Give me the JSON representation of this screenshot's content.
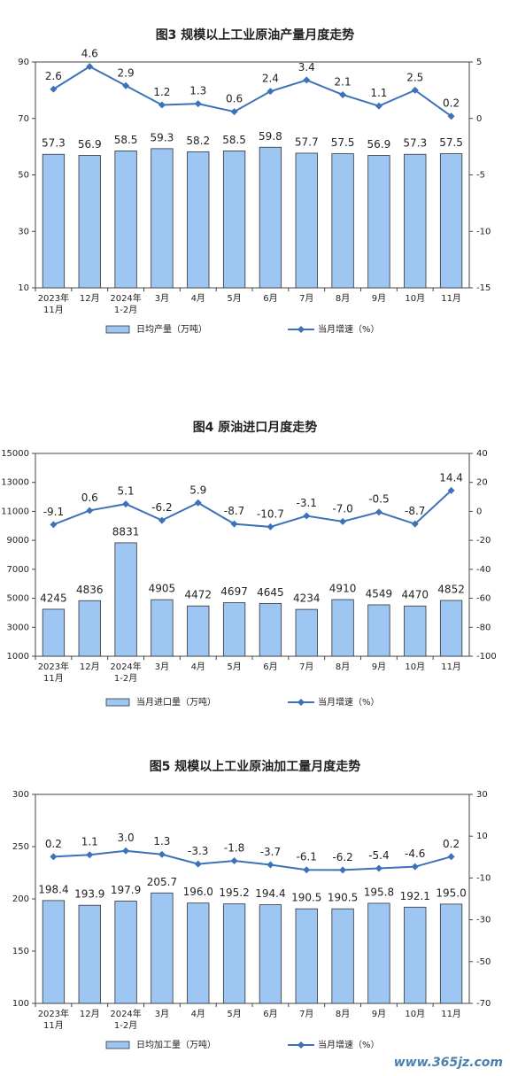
{
  "chart_data": [
    {
      "type": "combo",
      "title": "图3  规模以上工业原油产量月度走势",
      "categories": [
        "2023年\n11月",
        "12月",
        "2024年\n1-2月",
        "3月",
        "4月",
        "5月",
        "6月",
        "7月",
        "8月",
        "9月",
        "10月",
        "11月"
      ],
      "series": [
        {
          "name": "日均产量（万吨）",
          "type": "bar",
          "color": "#9dc6f2",
          "values": [
            57.3,
            56.9,
            58.5,
            59.3,
            58.2,
            58.5,
            59.8,
            57.7,
            57.5,
            56.9,
            57.3,
            57.5
          ]
        },
        {
          "name": "当月增速（%）",
          "type": "line",
          "axis": "y2",
          "color": "#3b72b8",
          "values": [
            2.6,
            4.6,
            2.9,
            1.2,
            1.3,
            0.6,
            2.4,
            3.4,
            2.1,
            1.1,
            2.5,
            0.2
          ]
        }
      ],
      "ylim": [
        10,
        90
      ],
      "yticks": [
        10,
        30,
        50,
        70,
        90
      ],
      "y2lim": [
        -15,
        5
      ],
      "y2ticks": [
        -15,
        -10,
        -5,
        0,
        5
      ]
    },
    {
      "type": "combo",
      "title": "图4  原油进口月度走势",
      "categories": [
        "2023年\n11月",
        "12月",
        "2024年\n1-2月",
        "3月",
        "4月",
        "5月",
        "6月",
        "7月",
        "8月",
        "9月",
        "10月",
        "11月"
      ],
      "series": [
        {
          "name": "当月进口量（万吨）",
          "type": "bar",
          "color": "#9dc6f2",
          "values": [
            4245,
            4836,
            8831,
            4905,
            4472,
            4697,
            4645,
            4234,
            4910,
            4549,
            4470,
            4852
          ]
        },
        {
          "name": "当月增速（%）",
          "type": "line",
          "axis": "y2",
          "color": "#3b72b8",
          "values": [
            -9.1,
            0.6,
            5.1,
            -6.2,
            5.9,
            -8.7,
            -10.7,
            -3.1,
            -7.0,
            -0.5,
            -8.7,
            14.4
          ],
          "value_labels": [
            "-9.1",
            "0.6",
            "5.1",
            "-6.2",
            "5.9",
            "-8.7",
            "-10.7",
            "-3.1",
            "-7.0",
            "-0.5",
            "-8.7",
            "14.4"
          ]
        }
      ],
      "ylim": [
        1000,
        15000
      ],
      "yticks": [
        1000,
        3000,
        5000,
        7000,
        9000,
        11000,
        13000,
        15000
      ],
      "y2lim": [
        -100,
        40
      ],
      "y2ticks": [
        -100,
        -80,
        -60,
        -40,
        -20,
        0,
        20,
        40
      ]
    },
    {
      "type": "combo",
      "title": "图5  规模以上工业原油加工量月度走势",
      "categories": [
        "2023年\n11月",
        "12月",
        "2024年\n1-2月",
        "3月",
        "4月",
        "5月",
        "6月",
        "7月",
        "8月",
        "9月",
        "10月",
        "11月"
      ],
      "series": [
        {
          "name": "日均加工量（万吨）",
          "type": "bar",
          "color": "#9dc6f2",
          "values": [
            198.4,
            193.9,
            197.9,
            205.7,
            196.0,
            195.2,
            194.4,
            190.5,
            190.5,
            195.8,
            192.1,
            195.0
          ],
          "value_labels": [
            "198.4",
            "193.9",
            "197.9",
            "205.7",
            "196.0",
            "195.2",
            "194.4",
            "190.5",
            "190.5",
            "195.8",
            "192.1",
            "195.0"
          ]
        },
        {
          "name": "当月增速（%）",
          "type": "line",
          "axis": "y2",
          "color": "#3b72b8",
          "values": [
            0.2,
            1.1,
            3.0,
            1.3,
            -3.3,
            -1.8,
            -3.7,
            -6.1,
            -6.2,
            -5.4,
            -4.6,
            0.2
          ],
          "value_labels": [
            "0.2",
            "1.1",
            "3.0",
            "1.3",
            "-3.3",
            "-1.8",
            "-3.7",
            "-6.1",
            "-6.2",
            "-5.4",
            "-4.6",
            "0.2"
          ]
        }
      ],
      "ylim": [
        100,
        300
      ],
      "yticks": [
        100,
        150,
        200,
        250,
        300
      ],
      "y2lim": [
        -70,
        30
      ],
      "y2ticks": [
        -70,
        -50,
        -30,
        -10,
        10,
        30
      ]
    }
  ],
  "watermark": "www.365jz.com"
}
